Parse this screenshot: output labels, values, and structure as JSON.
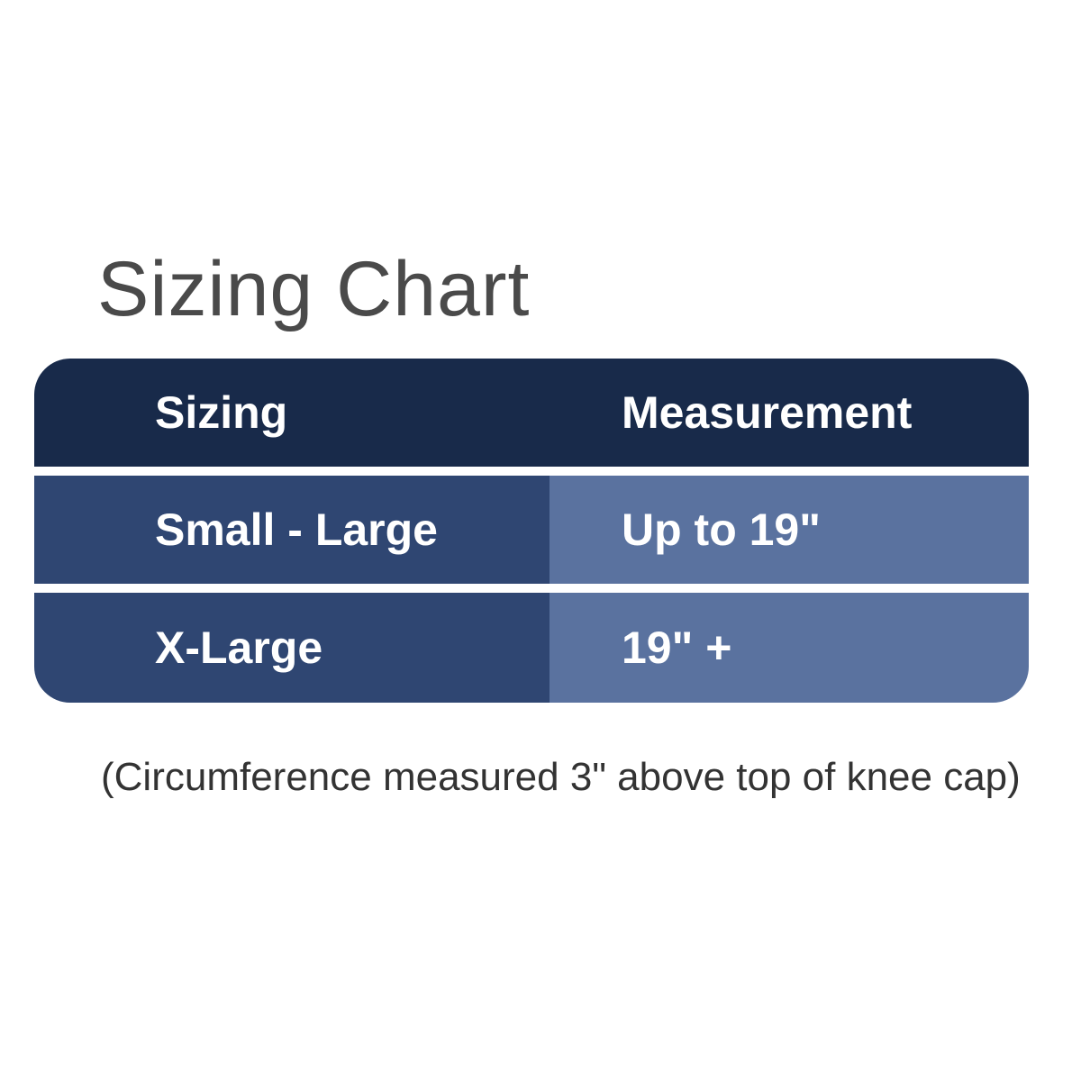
{
  "title": "Sizing Chart",
  "table": {
    "header": [
      "Sizing",
      "Measurement"
    ],
    "rows": [
      [
        "Small - Large",
        "Up to 19\""
      ],
      [
        "X-Large",
        "19\" +"
      ]
    ]
  },
  "note": "(Circumference measured 3\" above top of knee cap)"
}
